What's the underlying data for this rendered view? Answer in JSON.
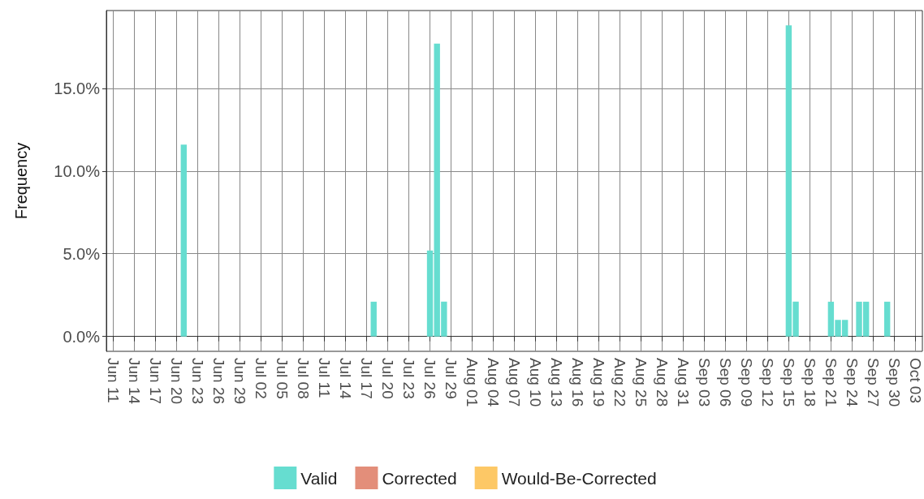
{
  "chart_data": {
    "type": "bar",
    "ylabel": "Frequency",
    "xlim": [
      "--06-10",
      "--10-04"
    ],
    "xticks": [
      {
        "value": "--06-11",
        "label": "Jun 11"
      },
      {
        "value": "--06-14",
        "label": "Jun 14"
      },
      {
        "value": "--06-17",
        "label": "Jun 17"
      },
      {
        "value": "--06-20",
        "label": "Jun 20"
      },
      {
        "value": "--06-23",
        "label": "Jun 23"
      },
      {
        "value": "--06-26",
        "label": "Jun 26"
      },
      {
        "value": "--06-29",
        "label": "Jun 29"
      },
      {
        "value": "--07-02",
        "label": "Jul 02"
      },
      {
        "value": "--07-05",
        "label": "Jul 05"
      },
      {
        "value": "--07-08",
        "label": "Jul 08"
      },
      {
        "value": "--07-11",
        "label": "Jul 11"
      },
      {
        "value": "--07-14",
        "label": "Jul 14"
      },
      {
        "value": "--07-17",
        "label": "Jul 17"
      },
      {
        "value": "--07-20",
        "label": "Jul 20"
      },
      {
        "value": "--07-23",
        "label": "Jul 23"
      },
      {
        "value": "--07-26",
        "label": "Jul 26"
      },
      {
        "value": "--07-29",
        "label": "Jul 29"
      },
      {
        "value": "--08-01",
        "label": "Aug 01"
      },
      {
        "value": "--08-04",
        "label": "Aug 04"
      },
      {
        "value": "--08-07",
        "label": "Aug 07"
      },
      {
        "value": "--08-10",
        "label": "Aug 10"
      },
      {
        "value": "--08-13",
        "label": "Aug 13"
      },
      {
        "value": "--08-16",
        "label": "Aug 16"
      },
      {
        "value": "--08-19",
        "label": "Aug 19"
      },
      {
        "value": "--08-22",
        "label": "Aug 22"
      },
      {
        "value": "--08-25",
        "label": "Aug 25"
      },
      {
        "value": "--08-28",
        "label": "Aug 28"
      },
      {
        "value": "--08-31",
        "label": "Aug 31"
      },
      {
        "value": "--09-03",
        "label": "Sep 03"
      },
      {
        "value": "--09-06",
        "label": "Sep 06"
      },
      {
        "value": "--09-09",
        "label": "Sep 09"
      },
      {
        "value": "--09-12",
        "label": "Sep 12"
      },
      {
        "value": "--09-15",
        "label": "Sep 15"
      },
      {
        "value": "--09-18",
        "label": "Sep 18"
      },
      {
        "value": "--09-21",
        "label": "Sep 21"
      },
      {
        "value": "--09-24",
        "label": "Sep 24"
      },
      {
        "value": "--09-27",
        "label": "Sep 27"
      },
      {
        "value": "--09-30",
        "label": "Sep 30"
      },
      {
        "value": "--10-03",
        "label": "Oct 03"
      }
    ],
    "ylim": [
      -0.9,
      19.7
    ],
    "yticks": [
      {
        "value": 0,
        "label": "0.0%"
      },
      {
        "value": 5,
        "label": "5.0%"
      },
      {
        "value": 10,
        "label": "10.0%"
      },
      {
        "value": 15,
        "label": "15.0%"
      }
    ],
    "series": [
      {
        "name": "Valid",
        "color": "#66ddd0",
        "x": [
          "--06-21",
          "--07-18",
          "--07-26",
          "--07-27",
          "--07-28",
          "--09-15",
          "--09-16",
          "--09-21",
          "--09-22",
          "--09-23",
          "--09-25",
          "--09-26",
          "--09-29"
        ],
        "values": [
          11.6,
          2.1,
          5.2,
          17.7,
          2.1,
          18.8,
          2.1,
          2.1,
          1.0,
          1.0,
          2.1,
          2.1,
          2.1
        ]
      },
      {
        "name": "Corrected",
        "color": "#e38e7a"
      },
      {
        "name": "Would-Be-Corrected",
        "color": "#fdc866"
      }
    ],
    "grid": true,
    "legend": "bottom"
  }
}
